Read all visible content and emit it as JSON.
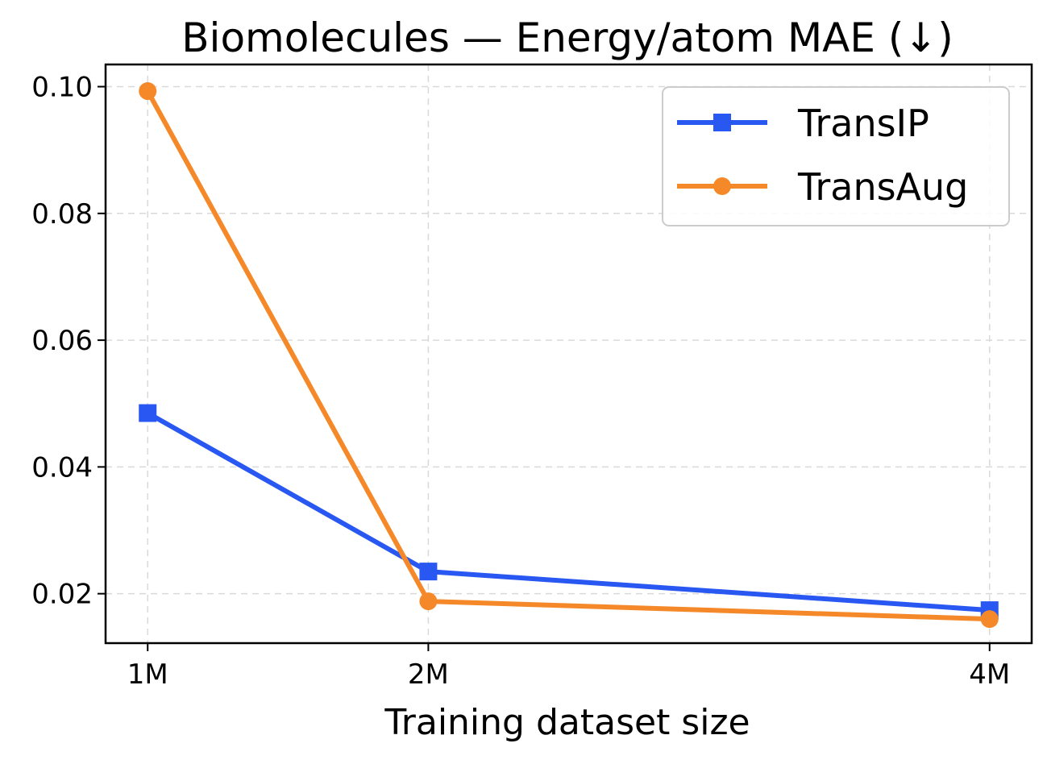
{
  "chart_data": {
    "type": "line",
    "title": "Biomolecules — Energy/atom MAE (↓)",
    "xlabel": "Training dataset size",
    "ylabel": "",
    "x": [
      1,
      2,
      4
    ],
    "categories": [
      "1M",
      "2M",
      "4M"
    ],
    "xlim": [
      0.85,
      4.15
    ],
    "ylim": [
      0.0122,
      0.1035
    ],
    "yticks": [
      0.02,
      0.04,
      0.06,
      0.08,
      0.1
    ],
    "ytick_labels": [
      "0.02",
      "0.04",
      "0.06",
      "0.08",
      "0.10"
    ],
    "grid": true,
    "legend_position": "top-right",
    "series": [
      {
        "name": "TransIP",
        "values": [
          0.0485,
          0.0235,
          0.0174
        ],
        "color": "#2857F2",
        "marker": "square"
      },
      {
        "name": "TransAug",
        "values": [
          0.0993,
          0.0188,
          0.016
        ],
        "color": "#F5892A",
        "marker": "circle"
      }
    ]
  }
}
